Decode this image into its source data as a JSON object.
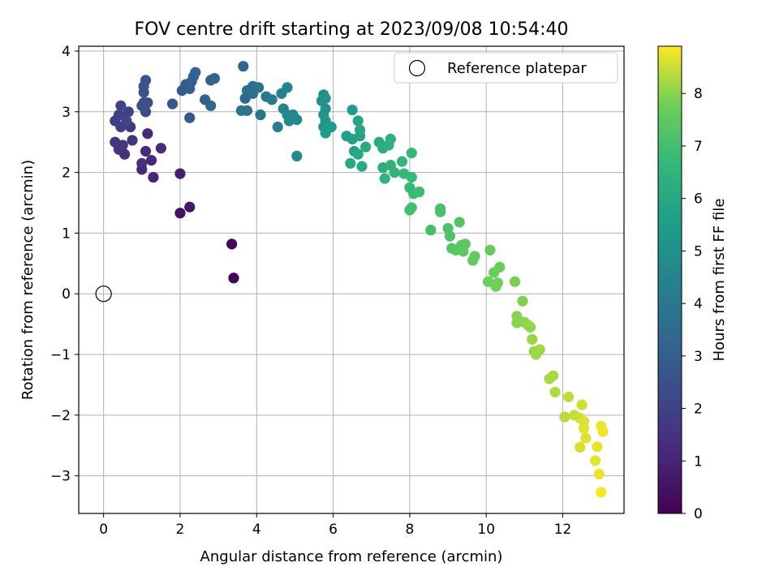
{
  "chart_data": {
    "type": "scatter",
    "title": "FOV centre drift starting at 2023/09/08 10:54:40",
    "xlabel": "Angular distance from reference (arcmin)",
    "ylabel": "Rotation from reference (arcmin)",
    "xlim": [
      -0.65,
      13.6
    ],
    "ylim": [
      -3.62,
      4.08
    ],
    "xticks": [
      0,
      2,
      4,
      6,
      8,
      10,
      12
    ],
    "yticks": [
      -3,
      -2,
      -1,
      0,
      1,
      2,
      3,
      4
    ],
    "xtick_labels": [
      "0",
      "2",
      "4",
      "6",
      "8",
      "10",
      "12"
    ],
    "ytick_labels": [
      "−3",
      "−2",
      "−1",
      "0",
      "1",
      "2",
      "3",
      "4"
    ],
    "grid": true,
    "legend": {
      "position": "top-right",
      "entries": [
        "Reference platepar"
      ]
    },
    "colorbar": {
      "label": "Hours from first FF file",
      "colormap": "viridis",
      "range": [
        0,
        8.9
      ],
      "ticks": [
        0,
        1,
        2,
        3,
        4,
        5,
        6,
        7,
        8
      ],
      "tick_labels": [
        "0",
        "1",
        "2",
        "3",
        "4",
        "5",
        "6",
        "7",
        "8"
      ]
    },
    "reference_point": {
      "name": "Reference platepar",
      "x": 0,
      "y": 0
    },
    "series": [
      {
        "encoding": [
          "x",
          "y",
          "hours"
        ],
        "points": [
          [
            3.4,
            0.26,
            0.05
          ],
          [
            3.35,
            0.82,
            0.15
          ],
          [
            2.0,
            1.33,
            0.5
          ],
          [
            2.25,
            1.43,
            0.6
          ],
          [
            2.0,
            1.98,
            0.8
          ],
          [
            1.3,
            1.92,
            1.0
          ],
          [
            1.0,
            2.05,
            1.1
          ],
          [
            1.25,
            2.2,
            1.15
          ],
          [
            1.15,
            2.64,
            1.2
          ],
          [
            1.5,
            2.4,
            1.25
          ],
          [
            1.1,
            2.35,
            1.3
          ],
          [
            1.0,
            2.15,
            1.35
          ],
          [
            0.55,
            2.3,
            1.45
          ],
          [
            0.4,
            2.38,
            1.5
          ],
          [
            0.75,
            2.53,
            1.5
          ],
          [
            0.3,
            2.5,
            1.6
          ],
          [
            0.5,
            2.45,
            1.6
          ],
          [
            0.7,
            2.75,
            1.7
          ],
          [
            0.45,
            2.75,
            1.8
          ],
          [
            0.3,
            2.85,
            1.85
          ],
          [
            0.4,
            2.95,
            1.9
          ],
          [
            0.55,
            2.92,
            1.95
          ],
          [
            0.65,
            3.0,
            2.0
          ],
          [
            0.45,
            3.1,
            2.1
          ],
          [
            0.6,
            2.85,
            2.1
          ],
          [
            1.1,
            3.0,
            2.3
          ],
          [
            1.05,
            3.15,
            2.4
          ],
          [
            1.15,
            3.15,
            2.45
          ],
          [
            1.0,
            3.1,
            2.5
          ],
          [
            1.05,
            3.32,
            2.55
          ],
          [
            1.05,
            3.42,
            2.6
          ],
          [
            1.1,
            3.52,
            2.65
          ],
          [
            1.8,
            3.13,
            2.7
          ],
          [
            2.25,
            2.9,
            2.8
          ],
          [
            2.05,
            3.35,
            2.85
          ],
          [
            2.15,
            3.45,
            2.9
          ],
          [
            2.25,
            3.38,
            3.0
          ],
          [
            2.3,
            3.5,
            3.0
          ],
          [
            2.35,
            3.58,
            3.05
          ],
          [
            2.4,
            3.65,
            3.1
          ],
          [
            2.8,
            3.52,
            3.15
          ],
          [
            2.9,
            3.55,
            3.2
          ],
          [
            2.65,
            3.2,
            3.2
          ],
          [
            2.8,
            3.1,
            3.25
          ],
          [
            3.65,
            3.75,
            3.3
          ],
          [
            3.7,
            3.22,
            3.4
          ],
          [
            3.75,
            3.35,
            3.5
          ],
          [
            3.9,
            3.42,
            3.6
          ],
          [
            3.9,
            3.3,
            3.7
          ],
          [
            4.05,
            3.4,
            3.75
          ],
          [
            3.6,
            3.02,
            3.8
          ],
          [
            3.75,
            3.02,
            3.85
          ],
          [
            4.1,
            2.95,
            4.0
          ],
          [
            4.25,
            3.25,
            4.1
          ],
          [
            4.4,
            3.2,
            4.2
          ],
          [
            4.55,
            2.75,
            4.3
          ],
          [
            4.65,
            3.3,
            4.4
          ],
          [
            4.7,
            3.05,
            4.45
          ],
          [
            4.8,
            3.4,
            4.5
          ],
          [
            4.8,
            2.95,
            4.55
          ],
          [
            4.85,
            2.85,
            4.6
          ],
          [
            4.95,
            2.95,
            4.65
          ],
          [
            5.05,
            2.87,
            4.7
          ],
          [
            5.05,
            2.27,
            4.8
          ],
          [
            5.7,
            3.18,
            5.0
          ],
          [
            5.75,
            3.28,
            5.05
          ],
          [
            5.8,
            3.22,
            5.1
          ],
          [
            5.8,
            3.05,
            5.15
          ],
          [
            5.75,
            2.95,
            5.2
          ],
          [
            5.8,
            2.85,
            5.25
          ],
          [
            5.75,
            2.75,
            5.3
          ],
          [
            5.85,
            2.72,
            5.35
          ],
          [
            5.8,
            2.65,
            5.4
          ],
          [
            5.95,
            2.75,
            5.45
          ],
          [
            6.5,
            3.03,
            5.6
          ],
          [
            6.35,
            2.6,
            5.65
          ],
          [
            6.5,
            2.55,
            5.7
          ],
          [
            6.55,
            2.35,
            5.75
          ],
          [
            6.65,
            2.85,
            5.8
          ],
          [
            6.7,
            2.6,
            5.85
          ],
          [
            6.7,
            2.7,
            5.9
          ],
          [
            6.65,
            2.3,
            5.95
          ],
          [
            6.45,
            2.15,
            6.0
          ],
          [
            6.75,
            2.1,
            6.05
          ],
          [
            6.85,
            2.42,
            6.1
          ],
          [
            7.2,
            2.5,
            6.15
          ],
          [
            7.3,
            2.4,
            6.2
          ],
          [
            7.3,
            2.08,
            6.25
          ],
          [
            7.5,
            2.55,
            6.3
          ],
          [
            7.45,
            2.45,
            6.35
          ],
          [
            7.35,
            1.9,
            6.4
          ],
          [
            7.5,
            2.12,
            6.45
          ],
          [
            7.6,
            2.0,
            6.5
          ],
          [
            7.8,
            2.18,
            6.55
          ],
          [
            7.85,
            1.98,
            6.6
          ],
          [
            8.05,
            2.32,
            6.65
          ],
          [
            8.05,
            1.92,
            6.7
          ],
          [
            8.0,
            1.75,
            6.75
          ],
          [
            8.1,
            1.65,
            6.8
          ],
          [
            8.25,
            1.68,
            6.85
          ],
          [
            8.05,
            1.42,
            6.9
          ],
          [
            8.0,
            1.38,
            6.95
          ],
          [
            8.55,
            1.05,
            7.0
          ],
          [
            8.8,
            1.4,
            7.05
          ],
          [
            8.8,
            1.35,
            7.1
          ],
          [
            9.0,
            1.08,
            7.15
          ],
          [
            9.05,
            0.95,
            7.2
          ],
          [
            9.1,
            0.75,
            7.25
          ],
          [
            9.3,
            1.18,
            7.3
          ],
          [
            9.2,
            0.72,
            7.35
          ],
          [
            9.35,
            0.8,
            7.4
          ],
          [
            9.45,
            0.82,
            7.45
          ],
          [
            9.4,
            0.7,
            7.5
          ],
          [
            9.65,
            0.55,
            7.55
          ],
          [
            9.7,
            0.62,
            7.6
          ],
          [
            10.1,
            0.72,
            7.65
          ],
          [
            10.2,
            0.35,
            7.7
          ],
          [
            10.35,
            0.44,
            7.72
          ],
          [
            10.05,
            0.2,
            7.75
          ],
          [
            10.25,
            0.12,
            7.78
          ],
          [
            10.3,
            0.18,
            7.8
          ],
          [
            10.75,
            0.2,
            7.85
          ],
          [
            10.95,
            -0.12,
            7.9
          ],
          [
            10.8,
            -0.37,
            7.95
          ],
          [
            10.8,
            -0.48,
            8.0
          ],
          [
            11.0,
            -0.47,
            8.02
          ],
          [
            11.1,
            -0.52,
            8.05
          ],
          [
            11.15,
            -0.55,
            8.08
          ],
          [
            11.2,
            -0.75,
            8.1
          ],
          [
            11.25,
            -0.95,
            8.12
          ],
          [
            11.3,
            -1.0,
            8.15
          ],
          [
            11.4,
            -0.92,
            8.18
          ],
          [
            11.65,
            -1.4,
            8.2
          ],
          [
            11.75,
            -1.35,
            8.25
          ],
          [
            11.8,
            -1.62,
            8.3
          ],
          [
            12.05,
            -2.03,
            8.35
          ],
          [
            12.15,
            -1.7,
            8.4
          ],
          [
            12.3,
            -2.0,
            8.45
          ],
          [
            12.45,
            -2.05,
            8.5
          ],
          [
            12.5,
            -1.83,
            8.55
          ],
          [
            12.45,
            -2.53,
            8.6
          ],
          [
            12.55,
            -2.1,
            8.62
          ],
          [
            12.6,
            -2.38,
            8.65
          ],
          [
            12.55,
            -2.22,
            8.68
          ],
          [
            12.85,
            -2.75,
            8.7
          ],
          [
            12.9,
            -2.52,
            8.72
          ],
          [
            12.95,
            -2.97,
            8.75
          ],
          [
            13.0,
            -2.18,
            8.78
          ],
          [
            13.05,
            -2.27,
            8.8
          ],
          [
            13.0,
            -3.27,
            8.85
          ]
        ]
      }
    ]
  }
}
